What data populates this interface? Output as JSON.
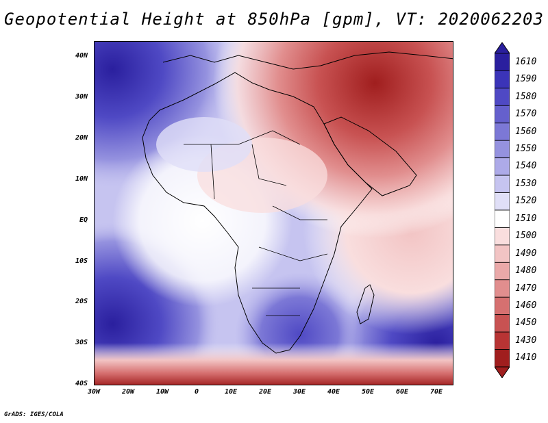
{
  "title": "Geopotential Height at 850hPa [gpm], VT: 2020062203",
  "footer": "GrADS: IGES/COLA",
  "lat_labels": [
    "40N",
    "30N",
    "20N",
    "10N",
    "EQ",
    "10S",
    "20S",
    "30S",
    "40S"
  ],
  "lon_labels": [
    "30W",
    "20W",
    "10W",
    "0",
    "10E",
    "20E",
    "30E",
    "40E",
    "50E",
    "60E",
    "70E"
  ],
  "colorbar": {
    "levels": [
      "1610",
      "1590",
      "1580",
      "1570",
      "1560",
      "1550",
      "1540",
      "1530",
      "1520",
      "1510",
      "1500",
      "1490",
      "1480",
      "1470",
      "1460",
      "1450",
      "1430",
      "1410"
    ],
    "colors": [
      "#2a1f9e",
      "#3b34b8",
      "#4f49c4",
      "#6560cd",
      "#7c78d6",
      "#9592df",
      "#adaae8",
      "#c6c4f0",
      "#e0dff7",
      "#ffffff",
      "#f9dede",
      "#f2c4c4",
      "#eaa9a9",
      "#e18e8e",
      "#d67070",
      "#c85252",
      "#b83434",
      "#a01e1e"
    ]
  }
}
